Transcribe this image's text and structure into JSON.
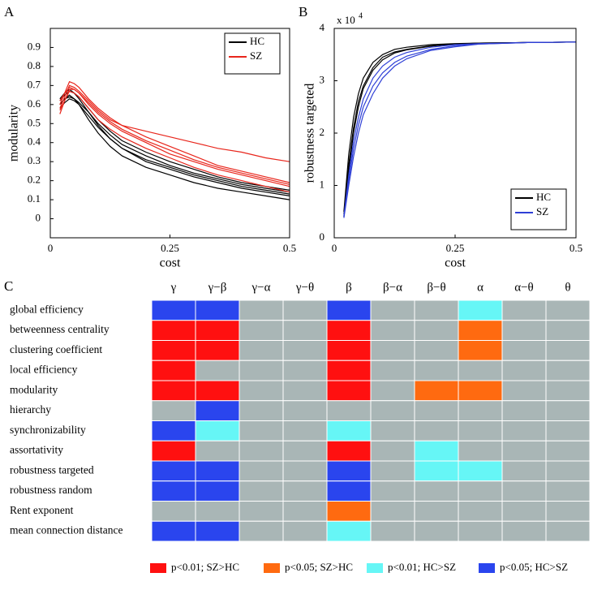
{
  "chart_data": [
    {
      "type": "line",
      "panel_label": "A",
      "x_label": "cost",
      "y_label": "modularity",
      "x": [
        0.02,
        0.03,
        0.04,
        0.05,
        0.06,
        0.08,
        0.1,
        0.125,
        0.15,
        0.2,
        0.25,
        0.3,
        0.35,
        0.4,
        0.45,
        0.5
      ],
      "series": [
        {
          "name": "HC",
          "color": "#000000",
          "lines": [
            [
              0.6,
              0.63,
              0.65,
              0.63,
              0.6,
              0.52,
              0.45,
              0.38,
              0.33,
              0.27,
              0.23,
              0.19,
              0.16,
              0.14,
              0.12,
              0.1
            ],
            [
              0.62,
              0.65,
              0.67,
              0.66,
              0.63,
              0.56,
              0.49,
              0.42,
              0.37,
              0.3,
              0.26,
              0.22,
              0.19,
              0.16,
              0.14,
              0.12
            ],
            [
              0.58,
              0.61,
              0.63,
              0.62,
              0.6,
              0.54,
              0.48,
              0.42,
              0.37,
              0.31,
              0.27,
              0.23,
              0.2,
              0.17,
              0.15,
              0.13
            ],
            [
              0.6,
              0.63,
              0.64,
              0.63,
              0.61,
              0.56,
              0.5,
              0.44,
              0.39,
              0.33,
              0.28,
              0.24,
              0.21,
              0.18,
              0.16,
              0.14
            ],
            [
              0.63,
              0.66,
              0.68,
              0.66,
              0.64,
              0.58,
              0.52,
              0.46,
              0.41,
              0.35,
              0.3,
              0.26,
              0.22,
              0.19,
              0.17,
              0.15
            ]
          ]
        },
        {
          "name": "SZ",
          "color": "#e8261c",
          "lines": [
            [
              0.55,
              0.62,
              0.68,
              0.68,
              0.66,
              0.6,
              0.55,
              0.5,
              0.46,
              0.4,
              0.34,
              0.3,
              0.26,
              0.23,
              0.2,
              0.17
            ],
            [
              0.6,
              0.66,
              0.72,
              0.71,
              0.69,
              0.63,
              0.58,
              0.53,
              0.49,
              0.43,
              0.38,
              0.33,
              0.28,
              0.25,
              0.22,
              0.19
            ],
            [
              0.58,
              0.64,
              0.7,
              0.69,
              0.67,
              0.62,
              0.57,
              0.52,
              0.49,
              0.46,
              0.43,
              0.4,
              0.37,
              0.35,
              0.32,
              0.3
            ],
            [
              0.62,
              0.66,
              0.69,
              0.68,
              0.66,
              0.61,
              0.56,
              0.51,
              0.47,
              0.41,
              0.36,
              0.31,
              0.27,
              0.24,
              0.21,
              0.18
            ],
            [
              0.57,
              0.62,
              0.67,
              0.66,
              0.64,
              0.58,
              0.52,
              0.47,
              0.43,
              0.37,
              0.32,
              0.27,
              0.23,
              0.2,
              0.17,
              0.14
            ]
          ]
        }
      ],
      "xlim": [
        0,
        0.5
      ],
      "xticks": [
        0,
        0.25,
        0.5
      ],
      "ylim": [
        -0.1,
        1.0
      ],
      "yticks": [
        0,
        0.1,
        0.2,
        0.3,
        0.4,
        0.5,
        0.6,
        0.7,
        0.8,
        0.9
      ],
      "legend": "upper right"
    },
    {
      "type": "line",
      "panel_label": "B",
      "x_label": "cost",
      "y_label": "robustness targeted",
      "y_scale_label": "x 10",
      "y_scale_exponent": "4",
      "x": [
        0.02,
        0.03,
        0.04,
        0.05,
        0.06,
        0.08,
        0.1,
        0.125,
        0.15,
        0.2,
        0.25,
        0.3,
        0.4,
        0.5
      ],
      "series": [
        {
          "name": "HC",
          "color": "#000000",
          "lines": [
            [
              4500,
              14000,
              21000,
              26000,
              29000,
              32500,
              34500,
              35500,
              36000,
              36700,
              37000,
              37200,
              37300,
              37400
            ],
            [
              5000,
              16000,
              23000,
              27500,
              30500,
              33500,
              35000,
              36000,
              36400,
              36900,
              37100,
              37200,
              37300,
              37400
            ],
            [
              4000,
              13000,
              20000,
              25000,
              28500,
              32000,
              34000,
              35300,
              35900,
              36600,
              37000,
              37200,
              37300,
              37400
            ]
          ]
        },
        {
          "name": "SZ",
          "color": "#2e3fd6",
          "lines": [
            [
              4000,
              11000,
              17000,
              21500,
              25000,
              29000,
              31500,
              33500,
              34700,
              36000,
              36700,
              37000,
              37300,
              37400
            ],
            [
              4200,
              12000,
              18500,
              23000,
              26500,
              30500,
              32800,
              34500,
              35400,
              36400,
              36900,
              37100,
              37300,
              37400
            ],
            [
              3800,
              10000,
              15500,
              20000,
              23500,
              27500,
              30500,
              32800,
              34200,
              35800,
              36500,
              37000,
              37300,
              37400
            ]
          ]
        }
      ],
      "xlim": [
        0,
        0.5
      ],
      "xticks": [
        0,
        0.25,
        0.5
      ],
      "ylim": [
        0,
        40000
      ],
      "yticks": [
        0,
        {
          "value": 10000,
          "label": "1"
        },
        {
          "value": 20000,
          "label": "2"
        },
        {
          "value": 30000,
          "label": "3"
        },
        {
          "value": 40000,
          "label": "4"
        }
      ],
      "legend": "lower right"
    },
    {
      "type": "heatmap",
      "panel_label": "C",
      "columns": [
        "γ",
        "γ−β",
        "γ−α",
        "γ−θ",
        "β",
        "β−α",
        "β−θ",
        "α",
        "α−θ",
        "θ"
      ],
      "rows": [
        "global efficiency",
        "betweenness centrality",
        "clustering coefficient",
        "local efficiency",
        "modularity",
        "hierarchy",
        "synchronizability",
        "assortativity",
        "robustness targeted",
        "robustness random",
        "Rent exponent",
        "mean connection distance"
      ],
      "cells": [
        [
          3,
          3,
          null,
          null,
          3,
          null,
          null,
          2,
          null,
          null
        ],
        [
          0,
          0,
          null,
          null,
          0,
          null,
          null,
          1,
          null,
          null
        ],
        [
          0,
          0,
          null,
          null,
          0,
          null,
          null,
          1,
          null,
          null
        ],
        [
          0,
          null,
          null,
          null,
          0,
          null,
          null,
          null,
          null,
          null
        ],
        [
          0,
          0,
          null,
          null,
          0,
          null,
          1,
          1,
          null,
          null
        ],
        [
          null,
          3,
          null,
          null,
          null,
          null,
          null,
          null,
          null,
          null
        ],
        [
          3,
          2,
          null,
          null,
          2,
          null,
          null,
          null,
          null,
          null
        ],
        [
          0,
          null,
          null,
          null,
          0,
          null,
          2,
          null,
          null,
          null
        ],
        [
          3,
          3,
          null,
          null,
          3,
          null,
          2,
          2,
          null,
          null
        ],
        [
          3,
          3,
          null,
          null,
          3,
          null,
          null,
          null,
          null,
          null
        ],
        [
          null,
          null,
          null,
          null,
          1,
          null,
          null,
          null,
          null,
          null
        ],
        [
          3,
          3,
          null,
          null,
          2,
          null,
          null,
          null,
          null,
          null
        ]
      ],
      "legend": [
        {
          "label": "p<0.01; SZ>HC",
          "color": "#ff1010"
        },
        {
          "label": "p<0.05; SZ>HC",
          "color": "#ff6a10"
        },
        {
          "label": "p<0.01; HC>SZ",
          "color": "#66f6f6"
        },
        {
          "label": "p<0.05; HC>SZ",
          "color": "#2a45ee"
        }
      ],
      "empty_color": "#a9b6b6"
    }
  ]
}
